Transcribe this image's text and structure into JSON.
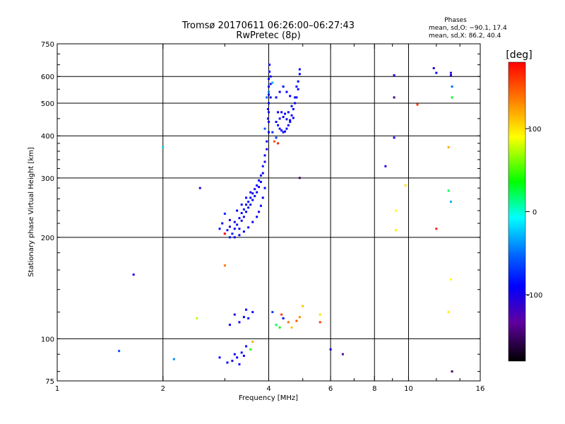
{
  "chart_data": {
    "type": "scatter",
    "title": "Tromsø 20170611 06:26:00–06:27:43",
    "subtitle": "RwPretec (8p)",
    "info": {
      "heading": "Phases",
      "line1": "mean, sd,O: −90.1, 17.4",
      "line2": "mean, sd,X:  86.2, 40.4"
    },
    "xlabel": "Frequency [MHz]",
    "ylabel": "Stationary phase Virtual Height [km]",
    "x_scale": "log",
    "y_scale": "log",
    "xlim": [
      1,
      16
    ],
    "ylim": [
      75,
      750
    ],
    "x_ticks": [
      1,
      2,
      4,
      6,
      8,
      10,
      16
    ],
    "y_ticks": [
      75,
      100,
      200,
      300,
      400,
      500,
      600,
      750
    ],
    "x_grid": [
      2,
      4,
      6,
      8,
      10
    ],
    "y_grid": [
      100,
      200,
      300,
      400,
      500,
      600
    ],
    "grid": true,
    "colorbar": {
      "label": "[deg]",
      "range": [
        -180,
        180
      ],
      "ticks": [
        100,
        0,
        -100
      ]
    },
    "points": [
      [
        3.0,
        205,
        -90
      ],
      [
        3.05,
        210,
        -85
      ],
      [
        3.1,
        200,
        -95
      ],
      [
        3.1,
        215,
        -100
      ],
      [
        3.15,
        205,
        -80
      ],
      [
        3.2,
        212,
        -90
      ],
      [
        3.2,
        222,
        -105
      ],
      [
        3.25,
        218,
        -85
      ],
      [
        3.3,
        212,
        -95
      ],
      [
        3.3,
        228,
        -90
      ],
      [
        3.35,
        224,
        -100
      ],
      [
        3.35,
        236,
        -88
      ],
      [
        3.4,
        230,
        -92
      ],
      [
        3.4,
        242,
        -80
      ],
      [
        3.45,
        238,
        -95
      ],
      [
        3.45,
        250,
        -90
      ],
      [
        3.5,
        245,
        -100
      ],
      [
        3.5,
        255,
        -85
      ],
      [
        3.55,
        250,
        -95
      ],
      [
        3.55,
        262,
        -90
      ],
      [
        3.6,
        258,
        -88
      ],
      [
        3.6,
        270,
        -100
      ],
      [
        3.65,
        265,
        -92
      ],
      [
        3.65,
        278,
        -85
      ],
      [
        3.7,
        272,
        -95
      ],
      [
        3.7,
        285,
        -90
      ],
      [
        3.75,
        282,
        -100
      ],
      [
        3.75,
        295,
        -88
      ],
      [
        3.8,
        292,
        -92
      ],
      [
        3.8,
        305,
        -95
      ],
      [
        3.85,
        310,
        -90
      ],
      [
        3.85,
        325,
        -85
      ],
      [
        3.9,
        335,
        -100
      ],
      [
        3.9,
        350,
        -90
      ],
      [
        3.95,
        365,
        -95
      ],
      [
        3.95,
        385,
        -88
      ],
      [
        4.0,
        410,
        -92
      ],
      [
        4.0,
        440,
        -90
      ],
      [
        4.0,
        470,
        -100
      ],
      [
        4.0,
        500,
        -85
      ],
      [
        4.0,
        530,
        -95
      ],
      [
        4.0,
        560,
        -90
      ],
      [
        4.0,
        590,
        -88
      ],
      [
        4.02,
        620,
        -92
      ],
      [
        4.02,
        650,
        -95
      ],
      [
        4.05,
        600,
        -90
      ],
      [
        4.05,
        570,
        -85
      ],
      [
        4.05,
        520,
        -100
      ],
      [
        3.98,
        480,
        -90
      ],
      [
        3.98,
        450,
        -95
      ],
      [
        3.2,
        200,
        -88
      ],
      [
        3.3,
        203,
        -92
      ],
      [
        3.4,
        208,
        -90
      ],
      [
        3.5,
        214,
        -85
      ],
      [
        3.6,
        222,
        -95
      ],
      [
        3.7,
        230,
        -90
      ],
      [
        3.75,
        238,
        -100
      ],
      [
        3.8,
        248,
        -88
      ],
      [
        3.85,
        262,
        -92
      ],
      [
        3.9,
        280,
        -90
      ],
      [
        3.1,
        225,
        -95
      ],
      [
        3.0,
        235,
        -80
      ],
      [
        2.95,
        220,
        -90
      ],
      [
        2.9,
        212,
        -85
      ],
      [
        3.25,
        240,
        -92
      ],
      [
        3.35,
        250,
        -95
      ],
      [
        3.45,
        262,
        -90
      ],
      [
        3.55,
        272,
        -88
      ],
      [
        4.2,
        440,
        -90
      ],
      [
        4.25,
        430,
        -85
      ],
      [
        4.3,
        420,
        -95
      ],
      [
        4.35,
        415,
        -90
      ],
      [
        4.4,
        410,
        -100
      ],
      [
        4.45,
        412,
        -88
      ],
      [
        4.5,
        420,
        -92
      ],
      [
        4.55,
        430,
        -90
      ],
      [
        4.6,
        445,
        -95
      ],
      [
        4.65,
        460,
        -85
      ],
      [
        4.7,
        480,
        -90
      ],
      [
        4.75,
        500,
        -95
      ],
      [
        4.8,
        520,
        -88
      ],
      [
        4.85,
        550,
        -92
      ],
      [
        4.85,
        580,
        -90
      ],
      [
        4.9,
        610,
        -95
      ],
      [
        4.9,
        630,
        -90
      ],
      [
        4.3,
        450,
        -88
      ],
      [
        4.4,
        455,
        -92
      ],
      [
        4.5,
        448,
        -90
      ],
      [
        4.6,
        440,
        -85
      ],
      [
        4.7,
        452,
        -95
      ],
      [
        4.25,
        470,
        -90
      ],
      [
        4.35,
        470,
        -100
      ],
      [
        4.45,
        465,
        -88
      ],
      [
        4.55,
        470,
        -92
      ],
      [
        4.65,
        490,
        -90
      ],
      [
        4.75,
        520,
        -95
      ],
      [
        4.8,
        560,
        -90
      ],
      [
        4.2,
        520,
        -90
      ],
      [
        4.3,
        540,
        -95
      ],
      [
        4.4,
        560,
        -88
      ],
      [
        4.5,
        540,
        -92
      ],
      [
        4.6,
        525,
        -90
      ],
      [
        4.1,
        410,
        -75
      ],
      [
        4.2,
        395,
        -70
      ],
      [
        3.9,
        420,
        -60
      ],
      [
        4.15,
        385,
        150
      ],
      [
        4.1,
        575,
        -30
      ],
      [
        4.0,
        540,
        -45
      ],
      [
        3.95,
        520,
        -55
      ],
      [
        2.0,
        370,
        -20
      ],
      [
        2.55,
        280,
        -110
      ],
      [
        1.65,
        155,
        -100
      ],
      [
        1.5,
        92,
        -60
      ],
      [
        2.15,
        87,
        -40
      ],
      [
        2.5,
        115,
        75
      ],
      [
        3.0,
        165,
        140
      ],
      [
        3.0,
        205,
        170
      ],
      [
        3.1,
        110,
        -90
      ],
      [
        3.2,
        118,
        -100
      ],
      [
        3.3,
        112,
        -95
      ],
      [
        3.4,
        116,
        -90
      ],
      [
        3.5,
        115,
        -85
      ],
      [
        3.6,
        120,
        -92
      ],
      [
        3.45,
        122,
        -90
      ],
      [
        2.9,
        88,
        -95
      ],
      [
        3.05,
        85,
        -90
      ],
      [
        3.15,
        86,
        -100
      ],
      [
        3.2,
        90,
        -92
      ],
      [
        3.25,
        88,
        -90
      ],
      [
        3.3,
        84,
        -85
      ],
      [
        3.35,
        91,
        -95
      ],
      [
        3.4,
        89,
        -90
      ],
      [
        3.45,
        95,
        -100
      ],
      [
        3.55,
        93,
        45
      ],
      [
        3.6,
        98,
        120
      ],
      [
        4.1,
        120,
        -70
      ],
      [
        4.2,
        110,
        20
      ],
      [
        4.3,
        108,
        40
      ],
      [
        4.35,
        118,
        160
      ],
      [
        4.4,
        115,
        -90
      ],
      [
        4.55,
        112,
        140
      ],
      [
        4.65,
        108,
        110
      ],
      [
        4.8,
        113,
        150
      ],
      [
        4.9,
        116,
        130
      ],
      [
        5.0,
        125,
        110
      ],
      [
        5.6,
        118,
        100
      ],
      [
        5.6,
        112,
        160
      ],
      [
        6.0,
        93,
        -95
      ],
      [
        6.5,
        90,
        -130
      ],
      [
        4.9,
        300,
        -150
      ],
      [
        4.25,
        380,
        170
      ],
      [
        8.6,
        325,
        -100
      ],
      [
        9.1,
        605,
        -110
      ],
      [
        9.1,
        395,
        -100
      ],
      [
        9.1,
        520,
        -150
      ],
      [
        9.2,
        240,
        90
      ],
      [
        9.2,
        210,
        95
      ],
      [
        9.8,
        285,
        100
      ],
      [
        10.6,
        495,
        160
      ],
      [
        11.8,
        635,
        -100
      ],
      [
        12.0,
        615,
        -90
      ],
      [
        12.0,
        212,
        170
      ],
      [
        13.0,
        370,
        120
      ],
      [
        13.0,
        275,
        20
      ],
      [
        13.2,
        255,
        -30
      ],
      [
        13.2,
        150,
        90
      ],
      [
        13.0,
        120,
        95
      ],
      [
        13.2,
        615,
        -110
      ],
      [
        13.2,
        605,
        -100
      ],
      [
        13.3,
        560,
        -50
      ],
      [
        13.3,
        520,
        30
      ],
      [
        13.3,
        80,
        -150
      ]
    ]
  }
}
